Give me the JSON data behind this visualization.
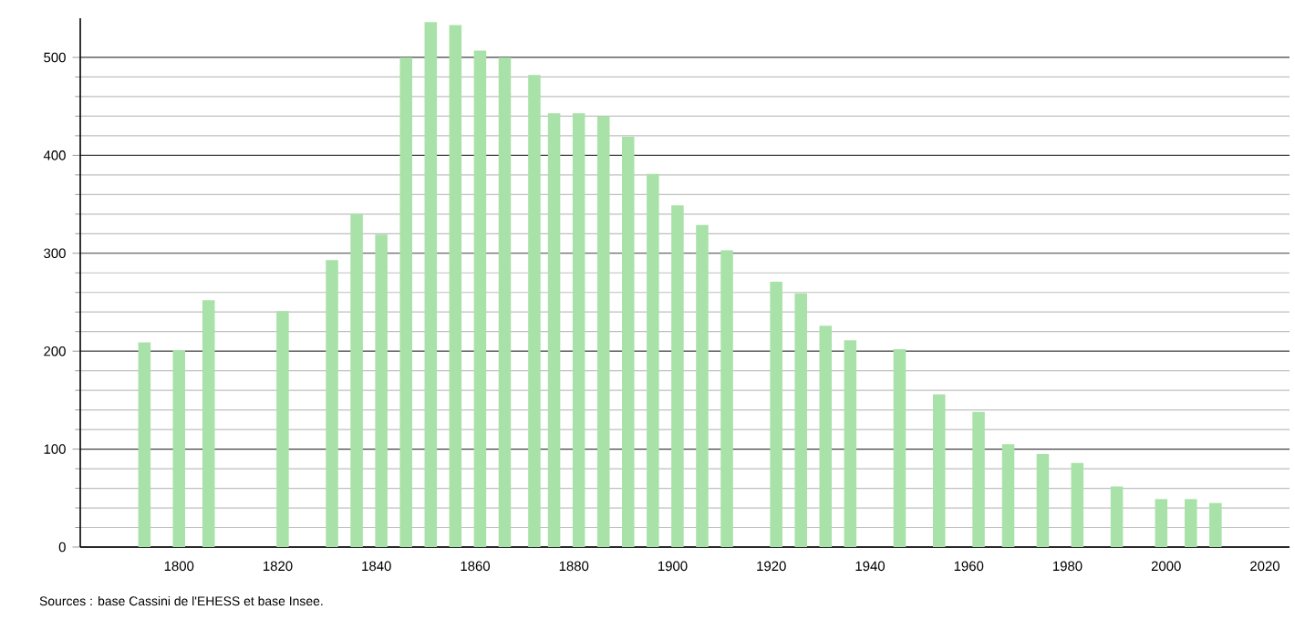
{
  "chart_data": {
    "type": "bar",
    "color": "#a8e2a8",
    "x": [
      1793,
      1800,
      1806,
      1821,
      1831,
      1836,
      1841,
      1846,
      1851,
      1856,
      1861,
      1866,
      1872,
      1876,
      1881,
      1886,
      1891,
      1896,
      1901,
      1906,
      1911,
      1921,
      1926,
      1931,
      1936,
      1946,
      1954,
      1962,
      1968,
      1975,
      1982,
      1990,
      1999,
      2005,
      2010
    ],
    "values": [
      209,
      201,
      252,
      241,
      293,
      340,
      319,
      500,
      536,
      533,
      507,
      500,
      482,
      443,
      443,
      440,
      419,
      381,
      349,
      329,
      303,
      271,
      259,
      226,
      211,
      202,
      156,
      138,
      105,
      95,
      86,
      62,
      49,
      49,
      45
    ],
    "xlim": [
      1780,
      2025
    ],
    "ylim": [
      0,
      540
    ],
    "xticks": [
      1800,
      1820,
      1840,
      1860,
      1880,
      1900,
      1920,
      1940,
      1960,
      1980,
      2000,
      2020
    ],
    "yticks": [
      0,
      100,
      200,
      300,
      400,
      500
    ],
    "grid": "y",
    "annotations": [
      "Sources : base Cassini de l'EHESS et base Insee."
    ]
  }
}
